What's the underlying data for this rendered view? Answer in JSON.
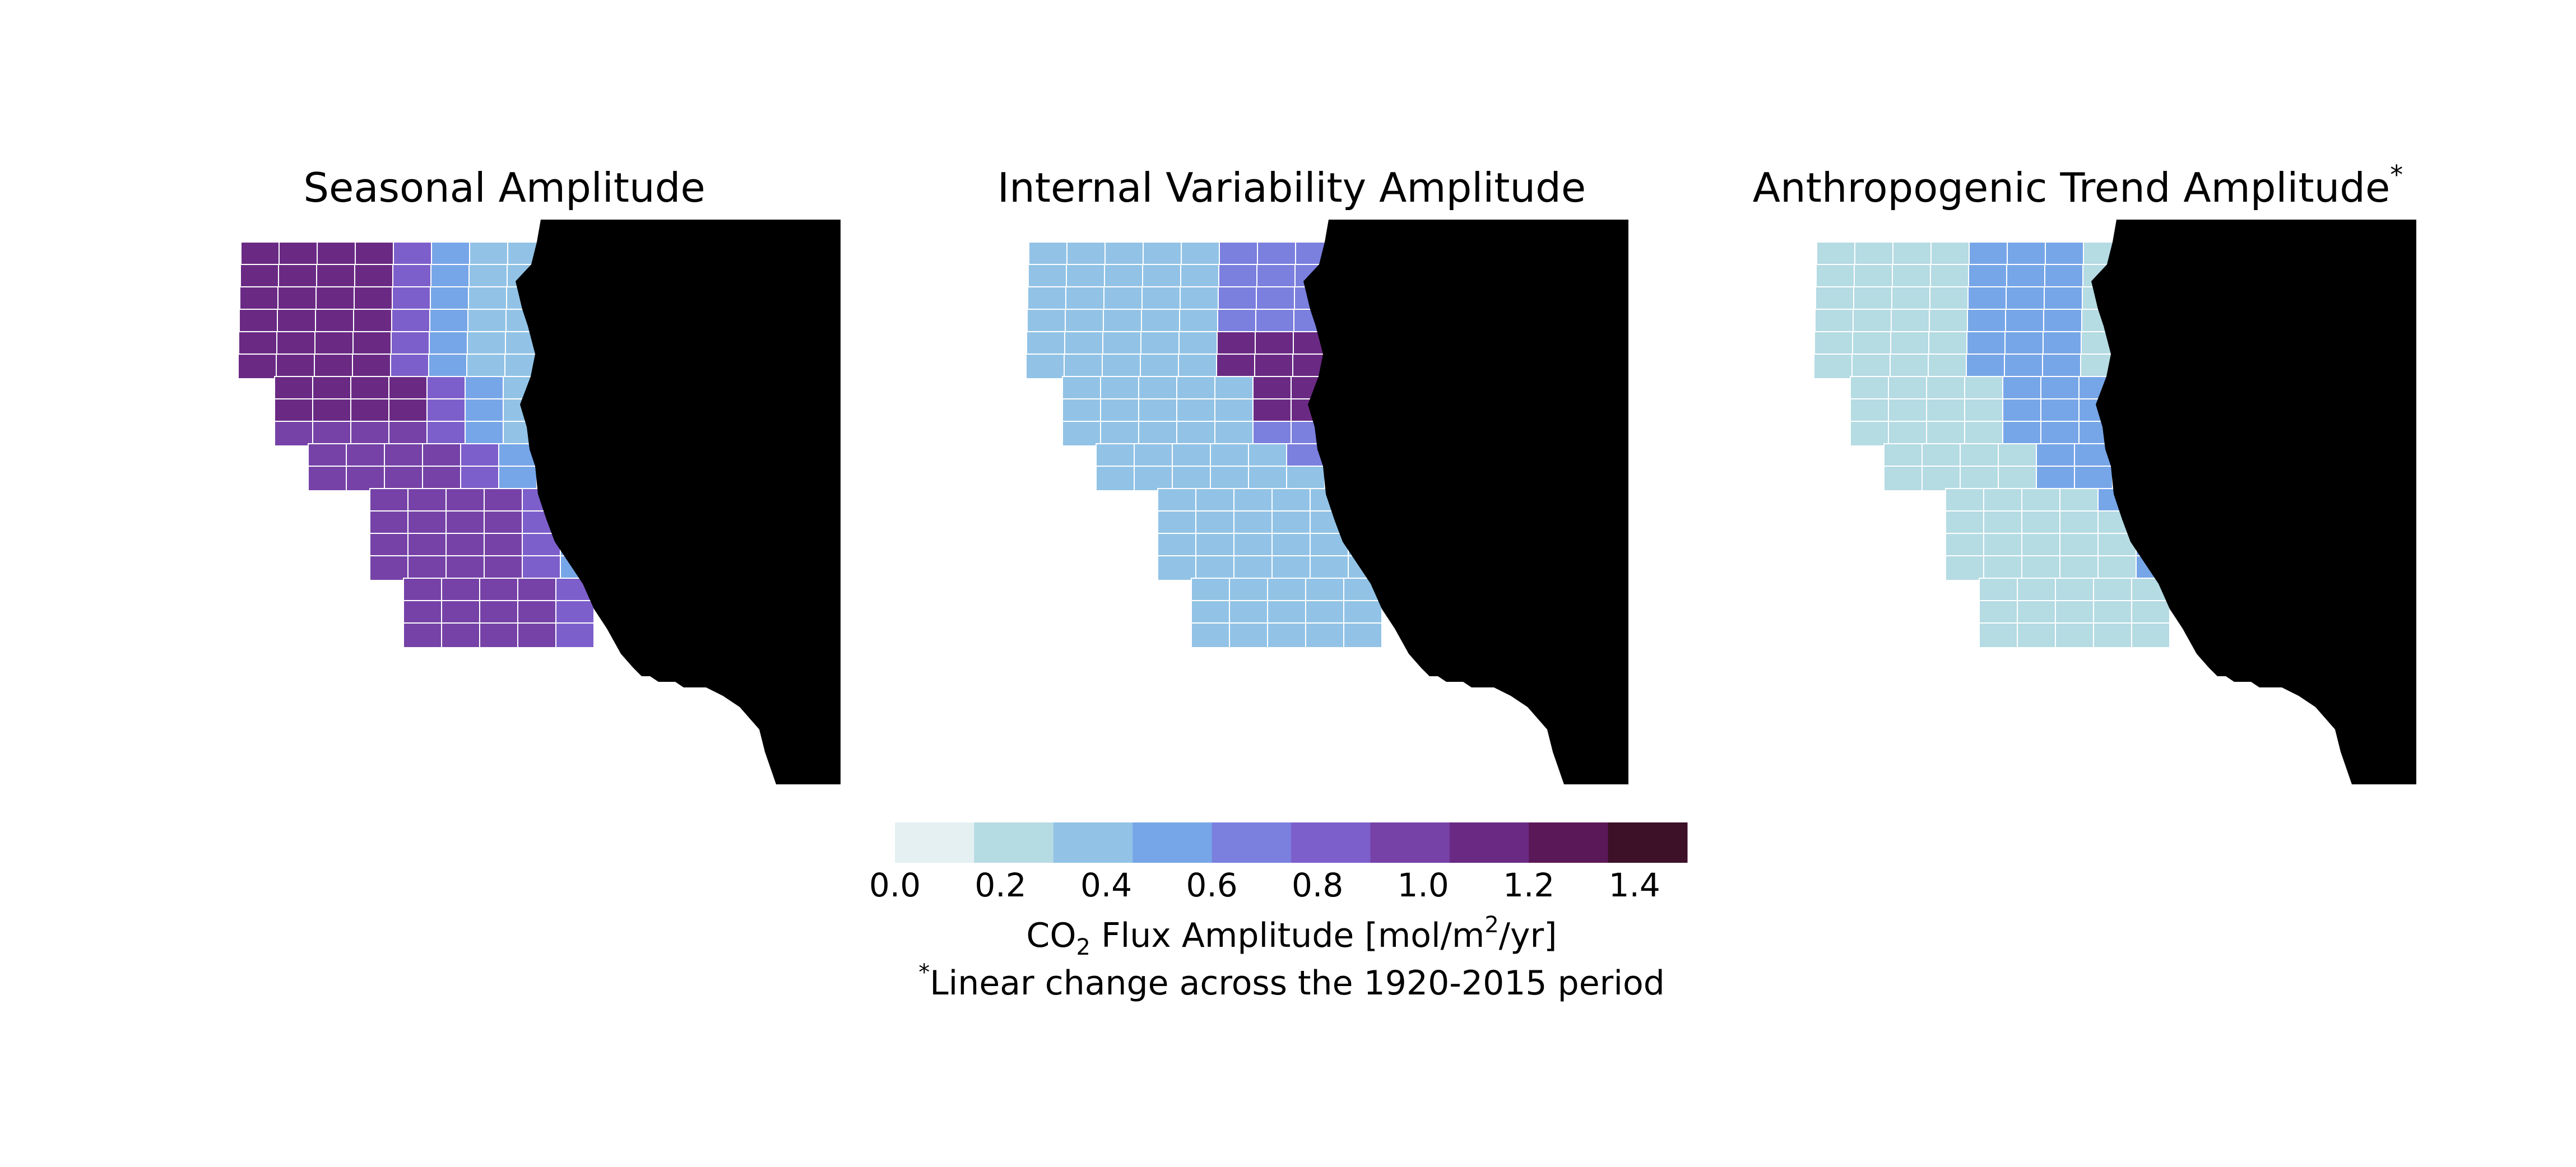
{
  "panels": [
    {
      "id": "seasonal",
      "title": "Seasonal Amplitude",
      "title_suffix": ""
    },
    {
      "id": "internal",
      "title": "Internal Variability Amplitude",
      "title_suffix": ""
    },
    {
      "id": "anthropogenic",
      "title": "Anthropogenic Trend Amplitude",
      "title_suffix": "*"
    }
  ],
  "colorbar": {
    "label_prefix": "CO",
    "label_sub": "2",
    "label_mid": " Flux Amplitude [mol/m",
    "label_sup": "2",
    "label_end": "/yr]",
    "footnote_mark": "*",
    "footnote": "Linear change across the 1920-2015 period",
    "range": [
      0.0,
      1.5
    ],
    "bins": 10,
    "ticks": [
      0.0,
      0.2,
      0.4,
      0.6,
      0.8,
      1.0,
      1.2,
      1.4
    ],
    "tick_labels": [
      "0.0",
      "0.2",
      "0.4",
      "0.6",
      "0.8",
      "1.0",
      "1.2",
      "1.4"
    ],
    "colors": [
      "#e4f0f2",
      "#b5dbe3",
      "#92c3e6",
      "#77a6e8",
      "#7b7fde",
      "#7d5fcb",
      "#7642a7",
      "#6a2a84",
      "#5a1858",
      "#3d1128"
    ]
  },
  "colors": {
    "land": "#000000",
    "grid_line": "#ffffff",
    "background": "#ffffff"
  }
}
